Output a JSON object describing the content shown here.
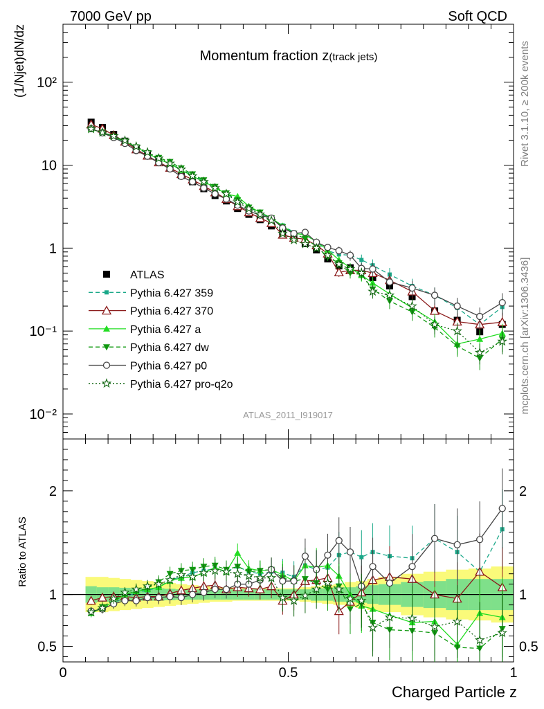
{
  "header": {
    "left": "7000 GeV pp",
    "right": "Soft QCD"
  },
  "side_labels": {
    "rivet": "Rivet 3.1.10, ≥ 200k events",
    "mcplots": "mcplots.cern.ch [arXiv:1306.3436]"
  },
  "chart_data": [
    {
      "panel": "main",
      "type": "line",
      "title_main": "Momentum fraction z",
      "title_sub": "(track jets)",
      "ylabel": "(1/Njet)dN/dz",
      "analysis_id": "ATLAS_2011_I919017",
      "yscale": "log",
      "xlim": [
        0,
        1
      ],
      "ylim": [
        0.005,
        500
      ],
      "y_tick_labels": [
        "10⁻²",
        "10⁻¹",
        "1",
        "10",
        "10²"
      ],
      "legend_position": "lower-left",
      "x": [
        0.0625,
        0.0875,
        0.1125,
        0.1375,
        0.1625,
        0.1875,
        0.2125,
        0.2375,
        0.2625,
        0.2875,
        0.3125,
        0.3375,
        0.3625,
        0.3875,
        0.4125,
        0.4375,
        0.4625,
        0.4875,
        0.5125,
        0.5375,
        0.5625,
        0.5875,
        0.6125,
        0.6375,
        0.6625,
        0.6875,
        0.725,
        0.775,
        0.825,
        0.875,
        0.925,
        0.975
      ],
      "series": [
        {
          "name": "ATLAS",
          "color": "#000000",
          "marker": "square-filled",
          "line": "none",
          "values": [
            33,
            28.5,
            23.5,
            19.5,
            16,
            13.2,
            11,
            9.2,
            7.5,
            6.3,
            5.2,
            4.3,
            3.7,
            3.0,
            2.55,
            2.2,
            1.85,
            1.55,
            1.33,
            1.13,
            0.95,
            0.74,
            0.61,
            0.58,
            0.53,
            0.44,
            0.35,
            0.26,
            0.175,
            0.135,
            0.098,
            0.12
          ]
        },
        {
          "name": "Pythia 6.427 359",
          "color": "#1aa889",
          "marker": "square-small",
          "line": "dashed",
          "values": [
            27.5,
            24.5,
            21.5,
            19,
            16.3,
            13.7,
            11.8,
            10.5,
            8.8,
            7.6,
            6.4,
            5.4,
            4.5,
            3.8,
            3.1,
            2.65,
            2.25,
            1.88,
            1.55,
            1.45,
            1.18,
            0.93,
            0.84,
            0.82,
            0.72,
            0.62,
            0.48,
            0.35,
            0.27,
            0.19,
            0.12,
            0.195
          ]
        },
        {
          "name": "Pythia 6.427 370",
          "color": "#8b1a1a",
          "marker": "triangle-open",
          "line": "solid",
          "values": [
            31,
            27.5,
            23,
            19.2,
            15.5,
            13,
            10.8,
            9.3,
            7.8,
            6.7,
            5.6,
            4.7,
            3.9,
            3.2,
            2.7,
            2.3,
            2.0,
            1.45,
            1.33,
            1.28,
            1.08,
            0.86,
            0.51,
            0.54,
            0.54,
            0.5,
            0.41,
            0.3,
            0.175,
            0.13,
            0.12,
            0.128
          ]
        },
        {
          "name": "Pythia 6.427 a",
          "color": "#22dd22",
          "marker": "triangle-filled",
          "line": "solid",
          "values": [
            27,
            24.8,
            21.8,
            19.5,
            16.5,
            13.9,
            11.8,
            10.4,
            8.7,
            7.4,
            6.3,
            5.4,
            4.5,
            4.2,
            3.2,
            2.7,
            2.3,
            1.85,
            1.5,
            1.45,
            1.2,
            0.95,
            0.72,
            0.58,
            0.47,
            0.38,
            0.28,
            0.19,
            0.13,
            0.07,
            0.08,
            0.094
          ]
        },
        {
          "name": "Pythia 6.427 dw",
          "color": "#119911",
          "marker": "triangle-down-filled",
          "line": "dashed",
          "values": [
            27.5,
            25,
            22,
            19.5,
            16.5,
            14,
            12.3,
            11,
            9.2,
            7.8,
            6.6,
            5.5,
            4.6,
            3.8,
            3.1,
            2.7,
            2.3,
            1.8,
            1.5,
            1.3,
            1.05,
            0.78,
            0.66,
            0.5,
            0.48,
            0.32,
            0.23,
            0.17,
            0.11,
            0.066,
            0.047,
            0.08
          ]
        },
        {
          "name": "Pythia 6.427 p0",
          "color": "#444444",
          "marker": "circle-open",
          "line": "solid",
          "values": [
            27.5,
            24.5,
            21.5,
            18.3,
            15,
            12.8,
            10.7,
            9.0,
            7.3,
            6.3,
            5.3,
            4.5,
            3.9,
            3.3,
            2.8,
            2.5,
            2.3,
            1.75,
            1.5,
            1.55,
            1.18,
            1.02,
            0.93,
            0.82,
            0.57,
            0.56,
            0.39,
            0.33,
            0.27,
            0.2,
            0.15,
            0.22
          ]
        },
        {
          "name": "Pythia 6.427 pro-q2o",
          "color": "#116611",
          "marker": "star-open",
          "line": "dotted",
          "values": [
            27.3,
            24.8,
            22.5,
            19.8,
            16.8,
            14.3,
            12.1,
            10.5,
            8.9,
            7.4,
            6.3,
            5.3,
            4.5,
            3.6,
            3.0,
            2.55,
            2.15,
            1.5,
            1.25,
            1.12,
            1.0,
            0.82,
            0.64,
            0.56,
            0.5,
            0.3,
            0.27,
            0.2,
            0.12,
            0.1,
            0.055,
            0.075
          ]
        }
      ]
    },
    {
      "panel": "ratio",
      "type": "line",
      "ylabel": "Ratio to ATLAS",
      "xlabel": "Charged Particle z",
      "xlim": [
        0,
        1
      ],
      "ylim": [
        0.35,
        2.5
      ],
      "x_ticks": [
        0,
        0.5,
        1
      ],
      "x_tick_labels": [
        "0",
        "0.5",
        "1"
      ],
      "y_ticks": [
        0.5,
        1,
        2
      ],
      "y_tick_labels": [
        "0.5",
        "1",
        "2"
      ],
      "reference_line": 1,
      "x": [
        0.0625,
        0.0875,
        0.1125,
        0.1375,
        0.1625,
        0.1875,
        0.2125,
        0.2375,
        0.2625,
        0.2875,
        0.3125,
        0.3375,
        0.3625,
        0.3875,
        0.4125,
        0.4375,
        0.4625,
        0.4875,
        0.5125,
        0.5375,
        0.5625,
        0.5875,
        0.6125,
        0.6375,
        0.6625,
        0.6875,
        0.725,
        0.775,
        0.825,
        0.875,
        0.925,
        0.975
      ],
      "band_inner": [
        0.08,
        0.07,
        0.07,
        0.065,
        0.06,
        0.06,
        0.06,
        0.055,
        0.05,
        0.05,
        0.05,
        0.05,
        0.05,
        0.05,
        0.05,
        0.05,
        0.05,
        0.05,
        0.05,
        0.05,
        0.06,
        0.06,
        0.07,
        0.07,
        0.08,
        0.09,
        0.1,
        0.12,
        0.13,
        0.15,
        0.15,
        0.15
      ],
      "band_outer": [
        0.17,
        0.17,
        0.16,
        0.15,
        0.14,
        0.13,
        0.12,
        0.11,
        0.1,
        0.09,
        0.08,
        0.07,
        0.07,
        0.06,
        0.06,
        0.06,
        0.06,
        0.06,
        0.06,
        0.07,
        0.08,
        0.09,
        0.1,
        0.12,
        0.13,
        0.15,
        0.17,
        0.2,
        0.22,
        0.24,
        0.25,
        0.27
      ],
      "band_colors": {
        "inner": "#7fe08a",
        "outer": "#fafa7a"
      },
      "series": [
        {
          "name": "Pythia 6.427 359",
          "color": "#1aa889",
          "marker": "square-small",
          "line": "dashed",
          "values": [
            0.83,
            0.87,
            0.92,
            0.97,
            1.02,
            1.04,
            1.07,
            1.14,
            1.17,
            1.21,
            1.23,
            1.25,
            1.22,
            1.27,
            1.22,
            1.2,
            1.22,
            1.21,
            1.17,
            1.28,
            1.24,
            1.26,
            1.38,
            1.41,
            1.36,
            1.41,
            1.37,
            1.35,
            1.54,
            1.41,
            1.22,
            1.63
          ]
        },
        {
          "name": "Pythia 6.427 370",
          "color": "#8b1a1a",
          "marker": "triangle-open",
          "line": "solid",
          "values": [
            0.94,
            0.97,
            0.98,
            0.98,
            0.97,
            0.98,
            0.98,
            1.01,
            1.04,
            1.06,
            1.08,
            1.09,
            1.05,
            1.07,
            1.06,
            1.05,
            1.08,
            0.94,
            1.0,
            1.13,
            1.14,
            1.16,
            0.84,
            0.93,
            1.02,
            1.14,
            1.17,
            1.15,
            1.0,
            0.96,
            1.22,
            1.07
          ]
        },
        {
          "name": "Pythia 6.427 a",
          "color": "#22dd22",
          "marker": "triangle-filled",
          "line": "solid",
          "values": [
            0.82,
            0.87,
            0.93,
            1.0,
            1.03,
            1.05,
            1.07,
            1.13,
            1.16,
            1.17,
            1.21,
            1.26,
            1.22,
            1.4,
            1.25,
            1.23,
            1.24,
            1.19,
            1.13,
            1.28,
            1.26,
            1.28,
            1.18,
            1.0,
            0.89,
            0.86,
            0.8,
            0.73,
            0.74,
            0.52,
            0.82,
            0.78
          ]
        },
        {
          "name": "Pythia 6.427 dw",
          "color": "#119911",
          "marker": "triangle-down-filled",
          "line": "dashed",
          "values": [
            0.83,
            0.88,
            0.94,
            1.0,
            1.03,
            1.06,
            1.12,
            1.2,
            1.23,
            1.24,
            1.27,
            1.28,
            1.24,
            1.27,
            1.22,
            1.23,
            1.24,
            1.16,
            1.13,
            1.15,
            1.11,
            1.05,
            1.08,
            0.86,
            0.91,
            0.73,
            0.66,
            0.65,
            0.63,
            0.49,
            0.48,
            0.67
          ]
        },
        {
          "name": "Pythia 6.427 p0",
          "color": "#444444",
          "marker": "circle-open",
          "line": "solid",
          "values": [
            0.84,
            0.86,
            0.91,
            0.94,
            0.94,
            0.97,
            0.97,
            0.98,
            0.97,
            1.0,
            1.02,
            1.05,
            1.05,
            1.1,
            1.1,
            1.14,
            1.24,
            1.13,
            1.13,
            1.37,
            1.24,
            1.38,
            1.52,
            1.41,
            1.08,
            1.27,
            1.11,
            1.27,
            1.54,
            1.48,
            1.53,
            1.83
          ]
        },
        {
          "name": "Pythia 6.427 pro-q2o",
          "color": "#116611",
          "marker": "star-open",
          "line": "dotted",
          "values": [
            0.83,
            0.87,
            0.96,
            1.02,
            1.05,
            1.08,
            1.1,
            1.14,
            1.19,
            1.17,
            1.21,
            1.23,
            1.22,
            1.2,
            1.18,
            1.16,
            1.16,
            0.97,
            0.94,
            0.99,
            1.05,
            1.11,
            1.05,
            0.96,
            0.94,
            0.68,
            0.78,
            0.77,
            0.69,
            0.74,
            0.56,
            0.63
          ]
        }
      ]
    }
  ]
}
